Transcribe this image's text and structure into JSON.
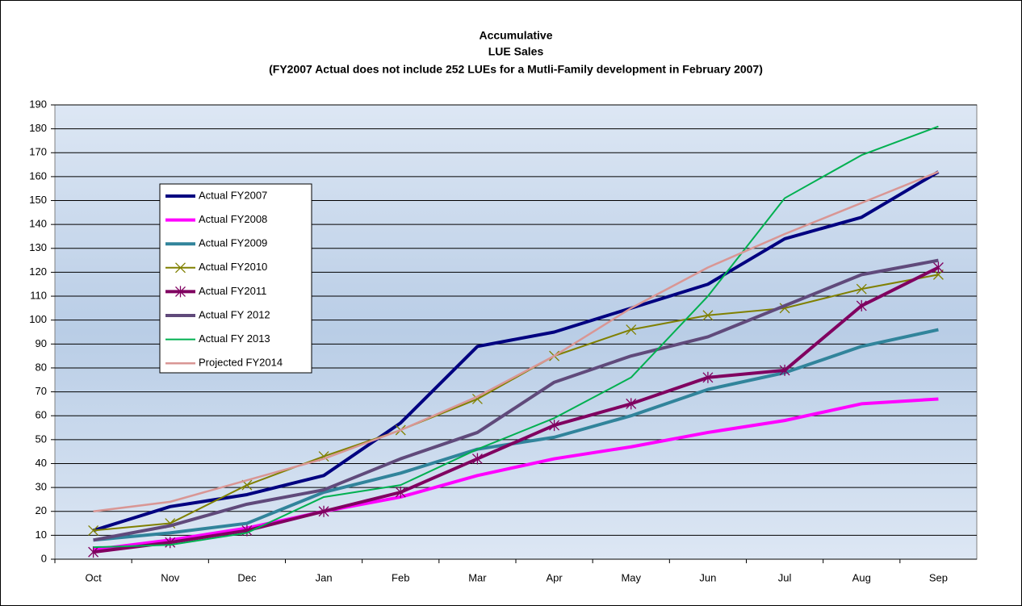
{
  "chart_data": {
    "type": "line",
    "title": [
      "Accumulative",
      "LUE Sales",
      "(FY2007 Actual does not include 252 LUEs for a Mutli-Family development in February 2007)"
    ],
    "categories": [
      "Oct",
      "Nov",
      "Dec",
      "Jan",
      "Feb",
      "Mar",
      "Apr",
      "May",
      "Jun",
      "Jul",
      "Aug",
      "Sep"
    ],
    "series": [
      {
        "name": "Actual FY2007",
        "color": "#000080",
        "marker": "none",
        "values": [
          12,
          22,
          27,
          35,
          57,
          89,
          95,
          105,
          115,
          134,
          143,
          162
        ]
      },
      {
        "name": "Actual FY2008",
        "color": "#ff00ff",
        "marker": "none",
        "values": [
          4,
          8,
          13,
          20,
          26,
          35,
          42,
          47,
          53,
          58,
          65,
          67
        ]
      },
      {
        "name": "Actual FY2009",
        "color": "#31849b",
        "marker": "none",
        "values": [
          8,
          11,
          15,
          28,
          36,
          46,
          51,
          60,
          71,
          78,
          89,
          96
        ]
      },
      {
        "name": "Actual FY2010",
        "color": "#808000",
        "marker": "x",
        "values": [
          12,
          15,
          31,
          43,
          54,
          67,
          85,
          96,
          102,
          105,
          113,
          119
        ]
      },
      {
        "name": "Actual FY2011",
        "color": "#800060",
        "marker": "star",
        "values": [
          3,
          7,
          12,
          20,
          28,
          42,
          56,
          65,
          76,
          79,
          106,
          122
        ]
      },
      {
        "name": "Actual FY 2012",
        "color": "#604a7b",
        "marker": "none",
        "values": [
          8,
          14,
          23,
          29,
          42,
          53,
          74,
          85,
          93,
          106,
          119,
          125
        ]
      },
      {
        "name": "Actual FY 2013",
        "color": "#00b050",
        "marker": "none",
        "values": [
          5,
          6,
          11,
          26,
          31,
          46,
          59,
          76,
          110,
          151,
          169,
          181
        ]
      },
      {
        "name": "Projected FY2014",
        "color": "#d99694",
        "marker": "none",
        "values": [
          20,
          24,
          33,
          42,
          54,
          68,
          85,
          105,
          122,
          136,
          149,
          162
        ]
      }
    ],
    "ylim": [
      0,
      190
    ],
    "yticks": [
      0,
      10,
      20,
      30,
      40,
      50,
      60,
      70,
      80,
      90,
      100,
      110,
      120,
      130,
      140,
      150,
      160,
      170,
      180,
      190
    ],
    "grid": true
  }
}
